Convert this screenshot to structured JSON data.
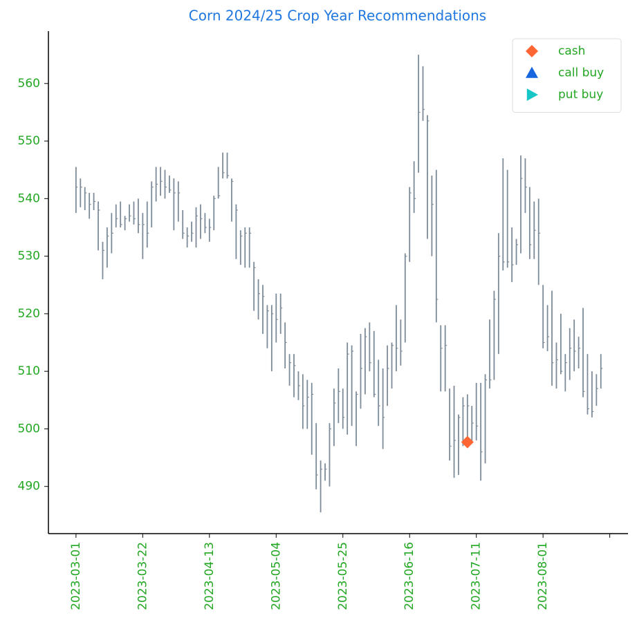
{
  "chart_data": {
    "type": "ohlc",
    "title": "Corn 2024/25 Crop Year Recommendations",
    "categories": [
      "2023-03-01",
      null,
      null,
      null,
      null,
      null,
      null,
      null,
      null,
      null,
      null,
      null,
      null,
      null,
      null,
      "2023-03-22",
      null,
      null,
      null,
      null,
      null,
      null,
      null,
      null,
      null,
      null,
      null,
      null,
      null,
      null,
      "2023-04-13",
      null,
      null,
      null,
      null,
      null,
      null,
      null,
      null,
      null,
      null,
      null,
      null,
      null,
      null,
      "2023-05-04",
      null,
      null,
      null,
      null,
      null,
      null,
      null,
      null,
      null,
      null,
      null,
      null,
      null,
      null,
      "2023-05-25",
      null,
      null,
      null,
      null,
      null,
      null,
      null,
      null,
      null,
      null,
      null,
      null,
      null,
      null,
      "2023-06-16",
      null,
      null,
      null,
      null,
      null,
      null,
      null,
      null,
      null,
      null,
      null,
      null,
      null,
      null,
      "2023-07-11",
      null,
      null,
      null,
      null,
      null,
      null,
      null,
      null,
      null,
      null,
      null,
      null,
      null,
      null,
      "2023-08-01",
      null,
      null,
      null,
      null,
      null,
      null,
      null,
      null,
      null,
      null,
      null,
      null,
      null
    ],
    "bars": {
      "color": "#7d8b99",
      "high": [
        545.5,
        543.5,
        542,
        541,
        541,
        539.5,
        532.5,
        535,
        537.5,
        539,
        539.5,
        537,
        539,
        539.5,
        540,
        537.5,
        539.5,
        543,
        545.5,
        545.5,
        545,
        544,
        543.5,
        543,
        538,
        535,
        536,
        538.5,
        539,
        537.5,
        536.5,
        540.5,
        545.5,
        548,
        548,
        543.5,
        539,
        534.5,
        535,
        535,
        529,
        526,
        525,
        521.5,
        521.5,
        523.5,
        523.5,
        518.5,
        513,
        513,
        510,
        509.5,
        508.5,
        508,
        501,
        494.5,
        494,
        501,
        507,
        510.5,
        507,
        515,
        514.5,
        506.5,
        516.5,
        517.5,
        518.5,
        517,
        512,
        510.5,
        514.5,
        515,
        521.5,
        519,
        530.5,
        542,
        546.5,
        565,
        563,
        554.5,
        544,
        545,
        518,
        518,
        507,
        507.5,
        502.5,
        505.5,
        506,
        504,
        508,
        508,
        509.5,
        519,
        524,
        534,
        547,
        545,
        535,
        533,
        547.5,
        547,
        542,
        539.5,
        540,
        525,
        521.5,
        524,
        515,
        520,
        513,
        517.5,
        519,
        516,
        521,
        513,
        510,
        509.5,
        513
      ],
      "low": [
        537.5,
        538.5,
        538,
        536.5,
        538,
        531,
        526,
        528,
        530.5,
        535,
        535,
        534.5,
        536,
        535.5,
        534,
        529.5,
        531.5,
        535,
        539.5,
        540.5,
        540,
        541,
        534.5,
        536,
        533,
        531.5,
        532.5,
        531.5,
        533,
        534,
        532.5,
        534.5,
        540,
        543.5,
        543.5,
        536,
        529.5,
        528.5,
        528,
        528,
        520.5,
        519,
        516.5,
        514,
        510,
        515,
        516.5,
        510.5,
        507.5,
        505.5,
        505,
        500,
        500,
        495.5,
        489.5,
        485.5,
        491,
        490,
        497,
        501,
        500,
        499,
        500.5,
        497,
        503.5,
        506,
        510,
        505.5,
        500.5,
        496.5,
        504,
        507,
        510,
        511,
        515,
        529,
        537.5,
        544.5,
        553.5,
        533,
        530,
        518.5,
        506.5,
        506.5,
        494.5,
        491.5,
        492,
        497,
        497.5,
        497.5,
        498,
        491,
        494,
        507,
        508.5,
        513,
        527.5,
        528,
        525.5,
        528.5,
        530.5,
        537.5,
        529.5,
        529.5,
        525,
        514,
        513.5,
        507.5,
        507,
        509.5,
        506.5,
        508.5,
        510,
        510.5,
        505.5,
        502.5,
        502,
        504,
        507
      ],
      "close": [
        542,
        542,
        541,
        539,
        539.5,
        538,
        531,
        533.5,
        534,
        536.5,
        535.5,
        536.5,
        537,
        536.5,
        535.5,
        535.5,
        534,
        542,
        542.5,
        543,
        542,
        541.5,
        541,
        541,
        534,
        533.5,
        534,
        537,
        536.5,
        535,
        535,
        540,
        540.5,
        544.5,
        544,
        543,
        538,
        533.5,
        534,
        534,
        528,
        523.5,
        523,
        520.5,
        520,
        519,
        521,
        515,
        511.5,
        511,
        507.5,
        504,
        505.5,
        506,
        492,
        493,
        493,
        500,
        504.5,
        506.5,
        502,
        513,
        513.5,
        506,
        510.5,
        516,
        511.5,
        506,
        504,
        502,
        510.5,
        514.5,
        514,
        513.5,
        530,
        541,
        540,
        555,
        555.5,
        553.5,
        539,
        522.5,
        514,
        514.5,
        497,
        498,
        502,
        504,
        504,
        501,
        500.5,
        496,
        508.5,
        508.5,
        522.5,
        530,
        529,
        529,
        528.5,
        532,
        543.5,
        542,
        532,
        534.5,
        534,
        515,
        516,
        511.5,
        512,
        510,
        511.5,
        514,
        513.5,
        514,
        506.5,
        503.5,
        503,
        507,
        510.5
      ]
    },
    "markers": [
      {
        "name": "cash",
        "color": "#ff6633",
        "shape": "diamond",
        "x": [
          88
        ],
        "values": [
          497.7
        ]
      },
      {
        "name": "call buy",
        "color": "#1766e0",
        "shape": "triangle-up",
        "x": [],
        "values": []
      },
      {
        "name": "put buy",
        "color": "#17c7c7",
        "shape": "triangle-right",
        "x": [],
        "values": []
      }
    ],
    "xlim": [
      -6.2,
      124.1
    ],
    "xticks": [
      0,
      15,
      30,
      45,
      60,
      75,
      90,
      105,
      120
    ],
    "ylim": [
      481.8,
      569.1
    ],
    "yticks": [
      490,
      500,
      510,
      520,
      530,
      540,
      550,
      560
    ],
    "legend": "upper right",
    "title_color": "#1f77e0",
    "tick_color": "#22a722"
  }
}
